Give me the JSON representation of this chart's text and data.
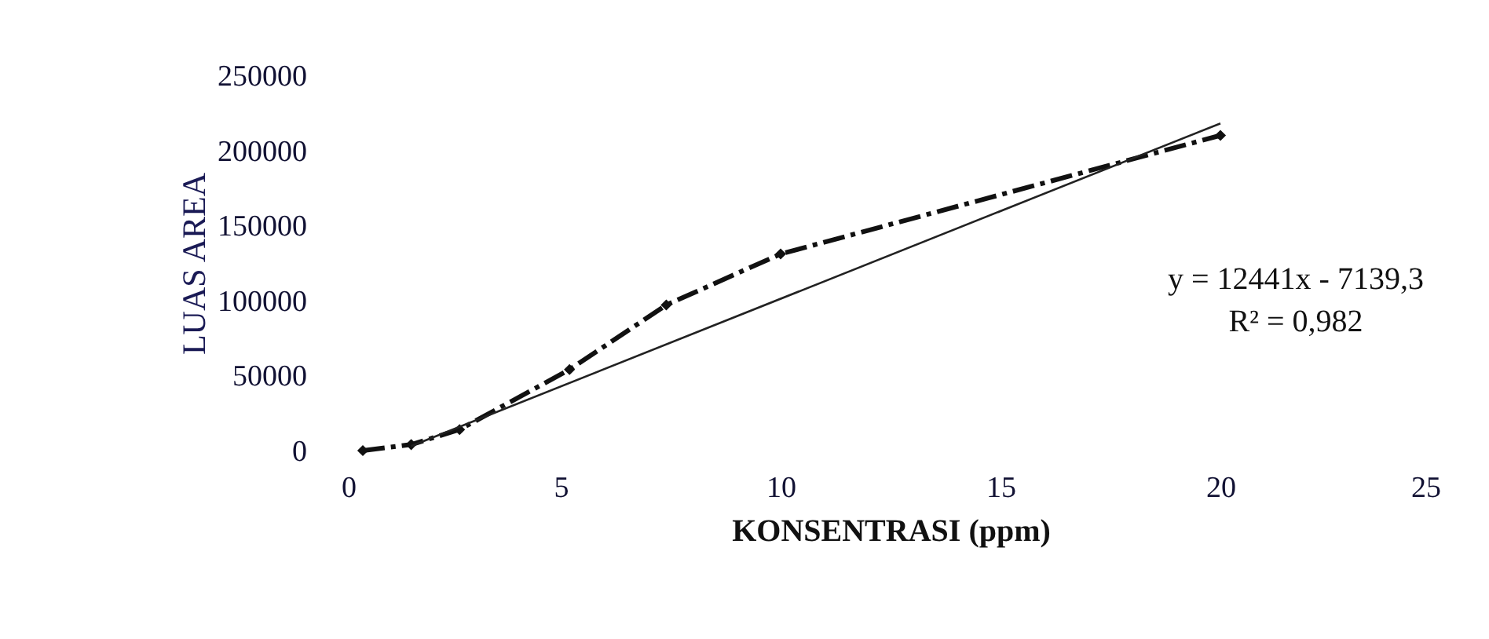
{
  "chart_data": {
    "type": "line",
    "xlabel": "KONSENTRASI (ppm)",
    "ylabel": "LUAS AREA",
    "xlim": [
      0,
      25
    ],
    "xticks": [
      0,
      5,
      10,
      15,
      20,
      25
    ],
    "ylim": [
      0,
      250000
    ],
    "yticks": [
      0,
      50000,
      100000,
      150000,
      200000,
      250000
    ],
    "grid": false,
    "annotations": [
      "y = 12441x - 7139,3",
      "R² = 0,982"
    ],
    "series": [
      {
        "type": "line",
        "color": "#111111",
        "line_style": "dashed",
        "marker": "diamond",
        "x": [
          0.5,
          1.6,
          2.7,
          5.2,
          7.4,
          10,
          20
        ],
        "values": [
          0,
          4000,
          14000,
          54000,
          97000,
          131000,
          210000
        ]
      },
      {
        "type": "line",
        "color": "#222222",
        "line_style": "solid",
        "marker": "none",
        "x": [
          1.6,
          20
        ],
        "values": [
          3000,
          218000
        ]
      }
    ]
  }
}
